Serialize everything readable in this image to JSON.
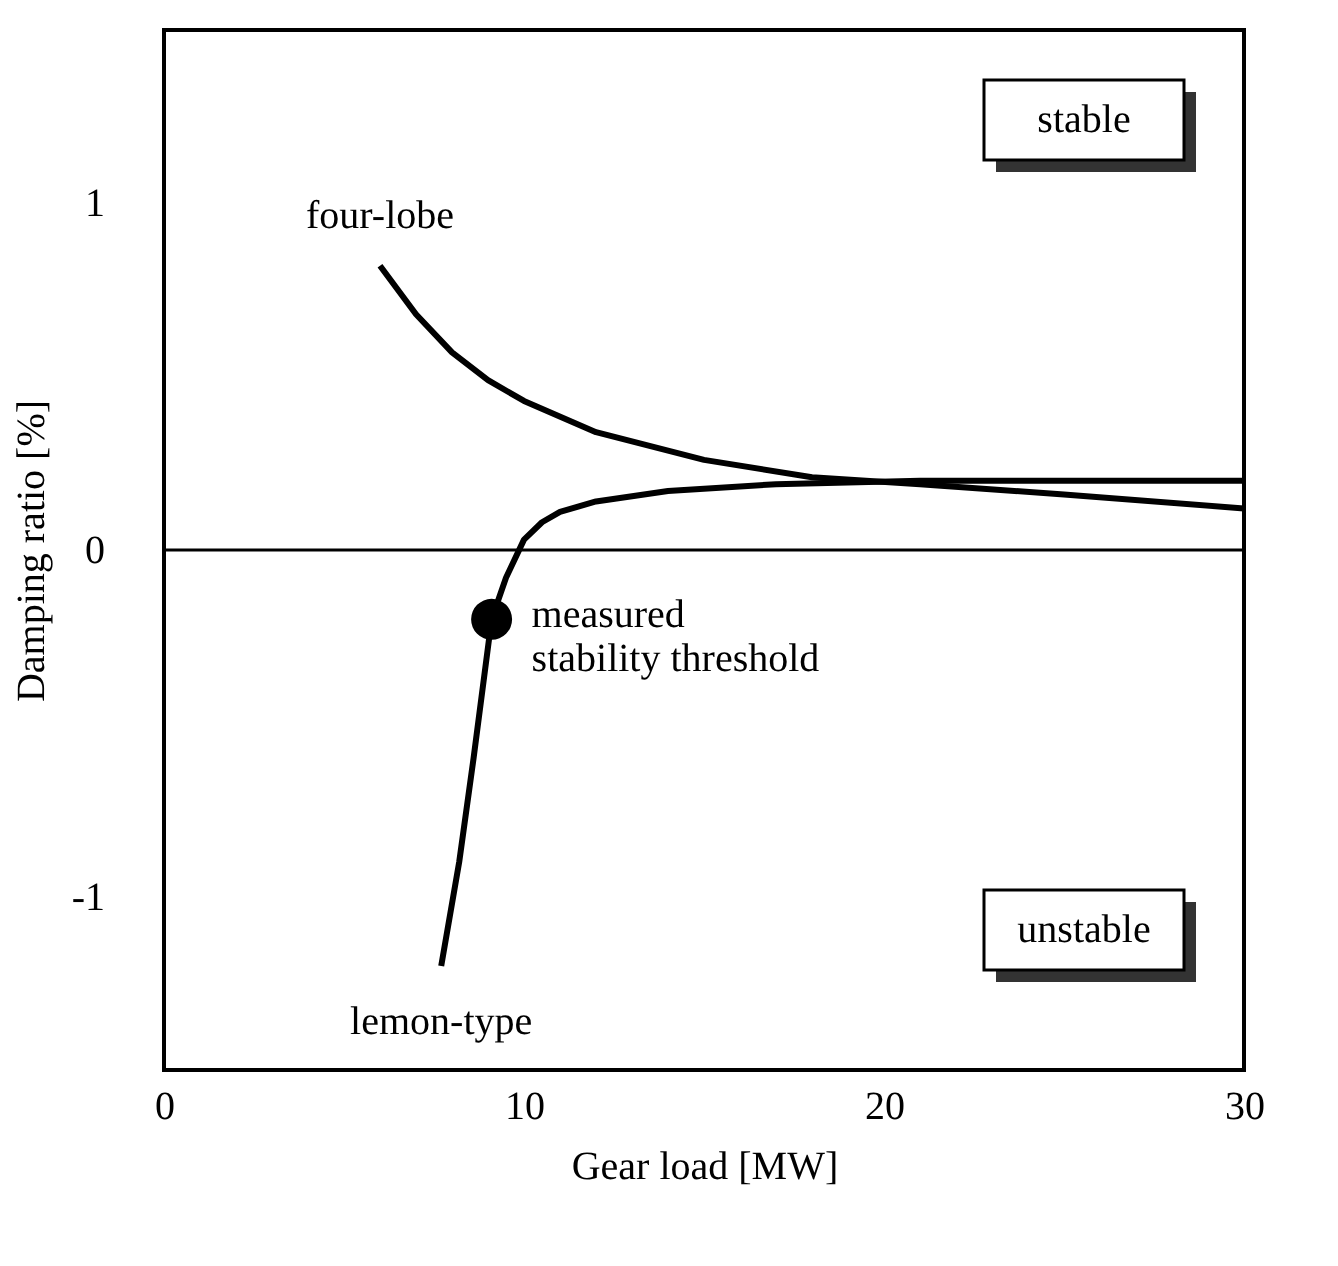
{
  "chart_data": {
    "type": "line",
    "xlabel": "Gear load [MW]",
    "ylabel": "Damping ratio [%]",
    "xlim": [
      0,
      30
    ],
    "xticks": [
      0,
      10,
      20,
      30
    ],
    "ylim": [
      -1.5,
      1.5
    ],
    "yticks": [
      -1,
      0,
      1
    ],
    "grid": false,
    "marker": "none",
    "line_style": "solid",
    "series": [
      {
        "name": "four-lobe",
        "color": "#000000",
        "x": [
          6,
          7,
          8,
          9,
          10,
          12,
          15,
          18,
          21,
          25,
          30
        ],
        "values": [
          0.82,
          0.68,
          0.57,
          0.49,
          0.43,
          0.34,
          0.26,
          0.21,
          0.19,
          0.16,
          0.12
        ]
      },
      {
        "name": "lemon-type",
        "color": "#000000",
        "x": [
          7.7,
          8.2,
          8.6,
          9.1,
          9.5,
          10,
          10.5,
          11,
          12,
          14,
          17,
          21,
          30
        ],
        "values": [
          -1.2,
          -0.9,
          -0.6,
          -0.2,
          -0.08,
          0.03,
          0.08,
          0.11,
          0.14,
          0.17,
          0.19,
          0.2,
          0.2
        ]
      },
      {
        "type": "scatter",
        "color": "#000000",
        "marker": "circle",
        "x": [
          9.1
        ],
        "values": [
          -0.2
        ]
      }
    ],
    "ref_lines": [
      {
        "axis": "y",
        "value": 0,
        "color": "#000000"
      }
    ],
    "annotations": [
      "stable",
      "unstable",
      {
        "text": "measured\nstability threshold",
        "x": 9.1,
        "y": -0.2
      }
    ]
  }
}
